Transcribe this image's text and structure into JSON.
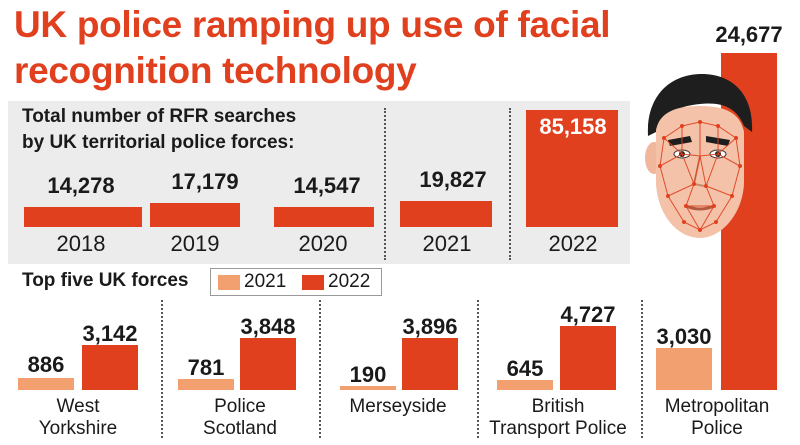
{
  "title_line1": "UK police ramping up use of facial",
  "title_line2": "recognition technology",
  "subtitle_line1": "Total number of RFR searches",
  "subtitle_line2": "by UK territorial police forces:",
  "yearly": [
    {
      "year": "2018",
      "value": "14,278"
    },
    {
      "year": "2019",
      "value": "17,179"
    },
    {
      "year": "2020",
      "value": "14,547"
    },
    {
      "year": "2021",
      "value": "19,827"
    },
    {
      "year": "2022",
      "value": "85,158"
    }
  ],
  "forces_heading": "Top five UK forces",
  "legend": [
    {
      "label": "2021",
      "color": "#f2a06f"
    },
    {
      "label": "2022",
      "color": "#e0401e"
    }
  ],
  "forces": [
    {
      "name_line1": "West",
      "name_line2": "Yorkshire",
      "v2021": "886",
      "v2022": "3,142"
    },
    {
      "name_line1": "Police",
      "name_line2": "Scotland",
      "v2021": "781",
      "v2022": "3,848"
    },
    {
      "name_line1": "Merseyside",
      "name_line2": "",
      "v2021": "190",
      "v2022": "3,896"
    },
    {
      "name_line1": "British",
      "name_line2": "Transport Police",
      "v2021": "645",
      "v2022": "4,727"
    },
    {
      "name_line1": "Metropolitan",
      "name_line2": "Police",
      "v2021": "3,030",
      "v2022": "24,677"
    }
  ],
  "chart_data": [
    {
      "type": "bar",
      "title": "Total number of RFR searches by UK territorial police forces:",
      "categories": [
        "2018",
        "2019",
        "2020",
        "2021",
        "2022"
      ],
      "values": [
        14278,
        17179,
        14547,
        19827,
        85158
      ]
    },
    {
      "type": "bar",
      "title": "Top five UK forces",
      "categories": [
        "West Yorkshire",
        "Police Scotland",
        "Merseyside",
        "British Transport Police",
        "Metropolitan Police"
      ],
      "series": [
        {
          "name": "2021",
          "values": [
            886,
            781,
            190,
            645,
            3030
          ]
        },
        {
          "name": "2022",
          "values": [
            3142,
            3848,
            3896,
            4727,
            24677
          ]
        }
      ]
    }
  ],
  "colors": {
    "accent": "#e0401e",
    "light": "#f2a06f",
    "panel": "#ececec"
  }
}
